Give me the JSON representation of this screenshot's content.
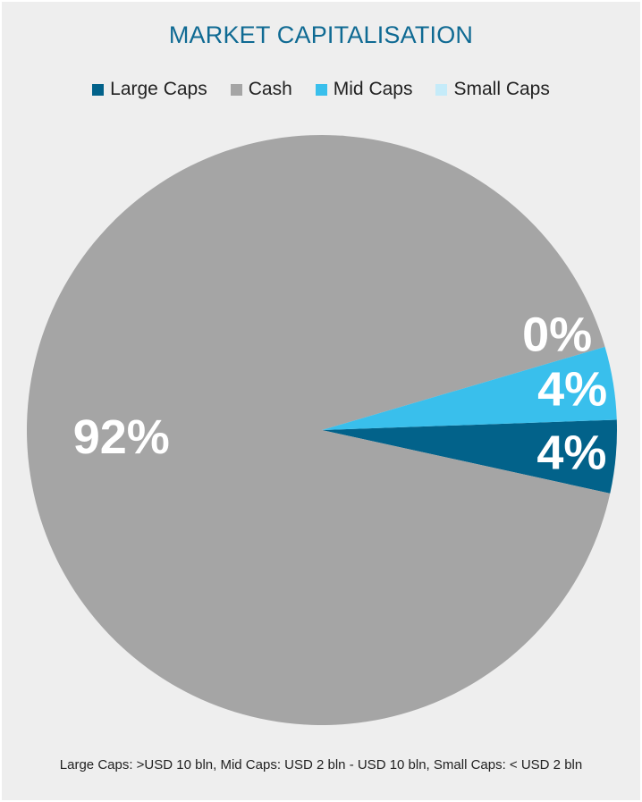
{
  "chart_data": {
    "type": "pie",
    "title": "MARKET CAPITALISATION",
    "categories": [
      "Large Caps",
      "Cash",
      "Mid Caps",
      "Small Caps"
    ],
    "values": [
      4,
      92,
      4,
      0
    ],
    "data_labels": [
      "4%",
      "92%",
      "4%",
      "0%"
    ],
    "colors": [
      "#02628a",
      "#a5a5a5",
      "#39bfec",
      "#c5ebf9"
    ],
    "legend_position": "top",
    "footnote": "Large Caps: >USD 10 bln, Mid Caps: USD 2 bln - USD 10 bln, Small Caps: < USD 2 bln"
  }
}
